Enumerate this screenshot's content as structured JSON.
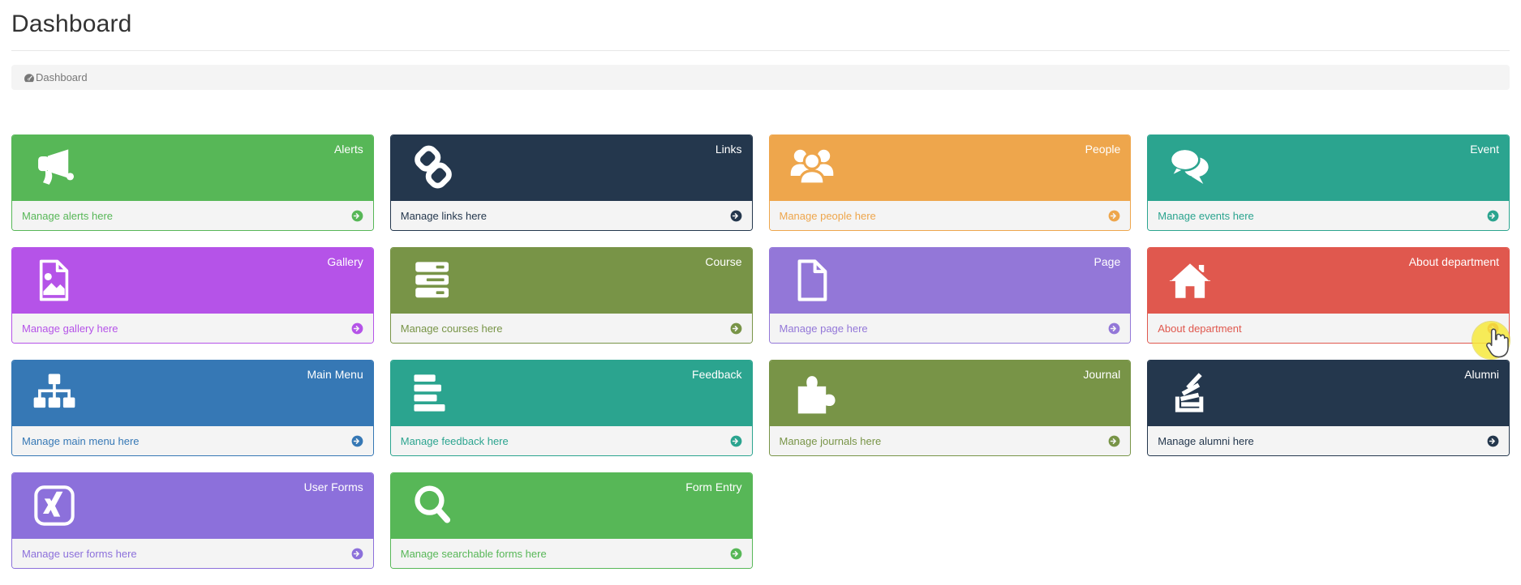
{
  "page": {
    "title": "Dashboard"
  },
  "breadcrumb": {
    "label": "Dashboard",
    "icon": "dashboard-gauge-icon"
  },
  "tiles": [
    {
      "id": "alerts",
      "title": "Alerts",
      "link_text": "Manage alerts here",
      "color": "#57b757",
      "icon": "bullhorn-icon"
    },
    {
      "id": "links",
      "title": "Links",
      "link_text": "Manage links here",
      "color": "#24374d",
      "icon": "chain-icon"
    },
    {
      "id": "people",
      "title": "People",
      "link_text": "Manage people here",
      "color": "#eea64c",
      "icon": "users-icon"
    },
    {
      "id": "event",
      "title": "Event",
      "link_text": "Manage events here",
      "color": "#2ba48f",
      "icon": "comments-icon"
    },
    {
      "id": "gallery",
      "title": "Gallery",
      "link_text": "Manage gallery here",
      "color": "#b553e8",
      "icon": "image-file-icon"
    },
    {
      "id": "course",
      "title": "Course",
      "link_text": "Manage courses here",
      "color": "#789447",
      "icon": "server-stack-icon"
    },
    {
      "id": "page",
      "title": "Page",
      "link_text": "Manage page here",
      "color": "#9377d8",
      "icon": "file-icon"
    },
    {
      "id": "about-department",
      "title": "About department",
      "link_text": "About department",
      "color": "#e0584e",
      "icon": "home-icon",
      "cursor_over_arrow": true
    },
    {
      "id": "main-menu",
      "title": "Main Menu",
      "link_text": "Manage main menu here",
      "color": "#3678b5",
      "icon": "sitemap-icon"
    },
    {
      "id": "feedback",
      "title": "Feedback",
      "link_text": "Manage feedback here",
      "color": "#2ba48f",
      "icon": "align-left-icon"
    },
    {
      "id": "journal",
      "title": "Journal",
      "link_text": "Manage journals here",
      "color": "#789447",
      "icon": "puzzle-icon"
    },
    {
      "id": "alumni",
      "title": "Alumni",
      "link_text": "Manage alumni here",
      "color": "#24374d",
      "icon": "stack-icon"
    },
    {
      "id": "user-forms",
      "title": "User Forms",
      "link_text": "Manage user forms here",
      "color": "#8c70db",
      "icon": "xing-icon"
    },
    {
      "id": "form-entry",
      "title": "Form Entry",
      "link_text": "Manage searchable forms here",
      "color": "#57b757",
      "icon": "search-icon"
    }
  ],
  "cursor": {
    "type": "hand-pointer",
    "highlight_color": "#f6e93c",
    "over": "about-department-footer-arrow"
  },
  "colors": {
    "page_bg": "#ffffff",
    "title_text": "#333333",
    "divider": "#e7e7e7",
    "breadcrumb_bg": "#f4f4f4",
    "breadcrumb_text": "#777777",
    "tile_footer_bg": "#f4f4f4"
  }
}
